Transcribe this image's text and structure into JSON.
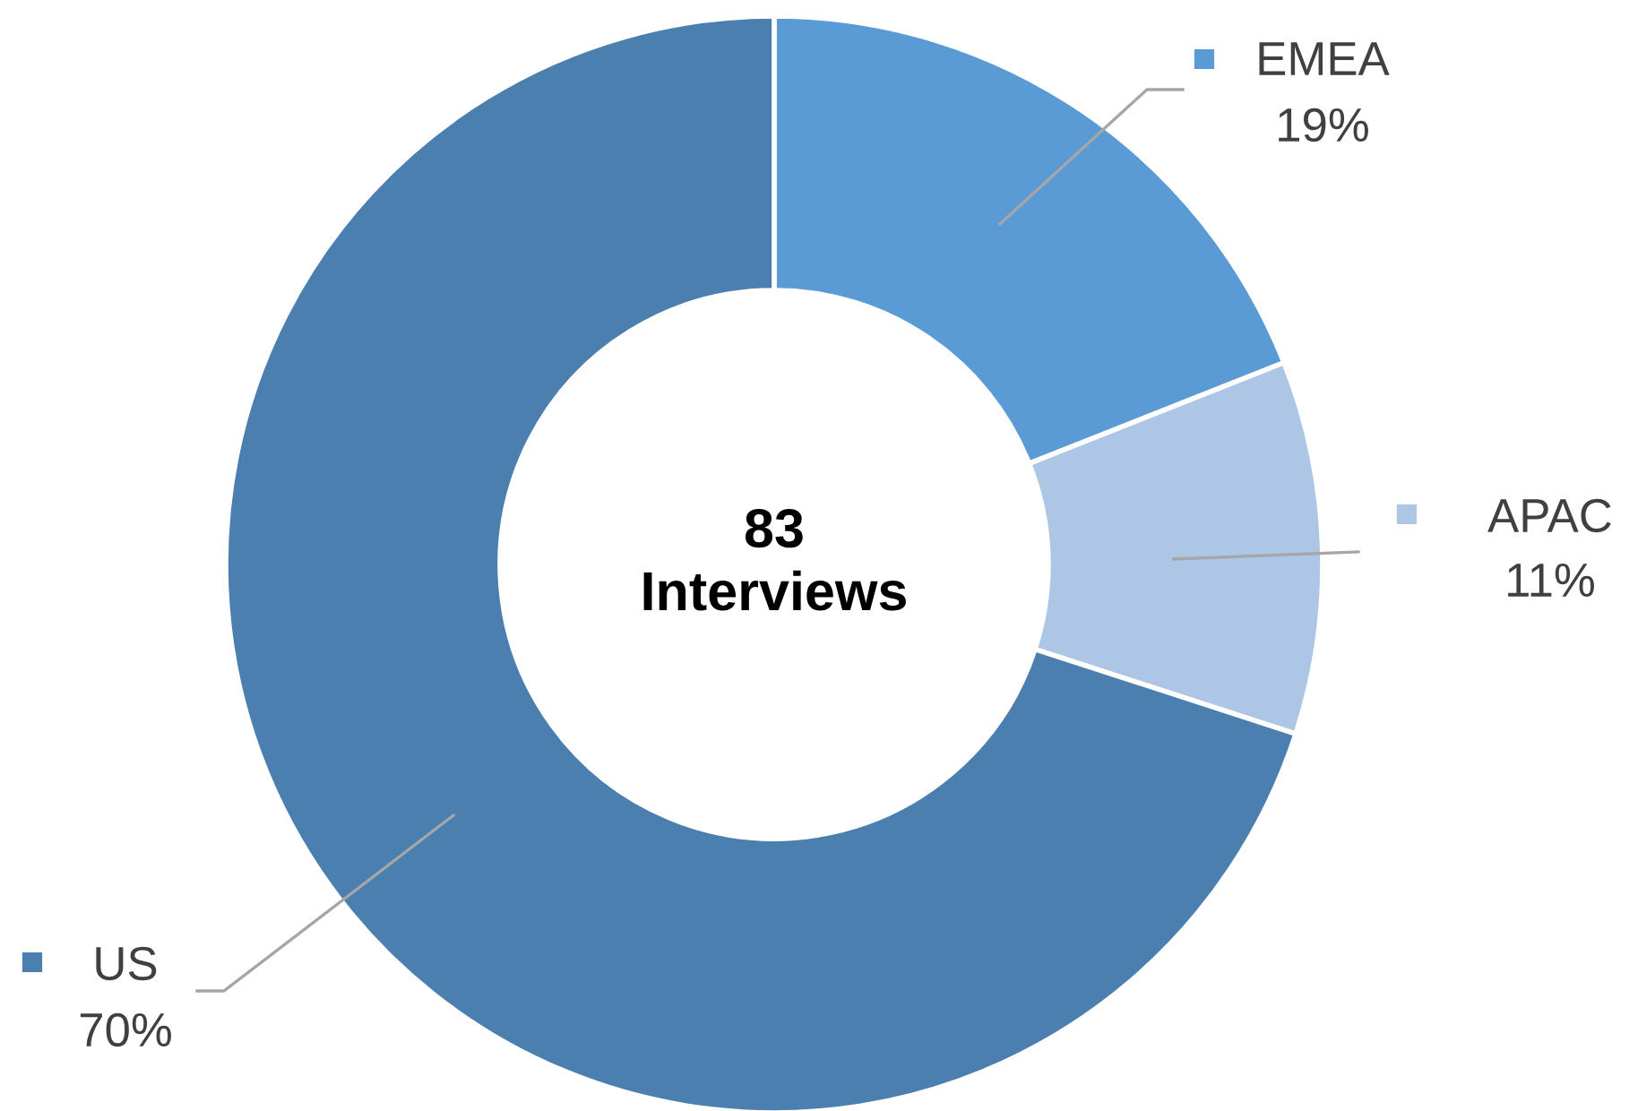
{
  "chart_data": {
    "type": "donut",
    "categories": [
      "EMEA",
      "APAC",
      "US"
    ],
    "values": [
      19,
      11,
      70
    ],
    "value_labels": [
      "19%",
      "11%",
      "70%"
    ],
    "colors": [
      "#5b9bd5",
      "#adc6e6",
      "#4a7fb0"
    ],
    "annotations": [
      "83\nInterviews"
    ],
    "legend": "right"
  }
}
